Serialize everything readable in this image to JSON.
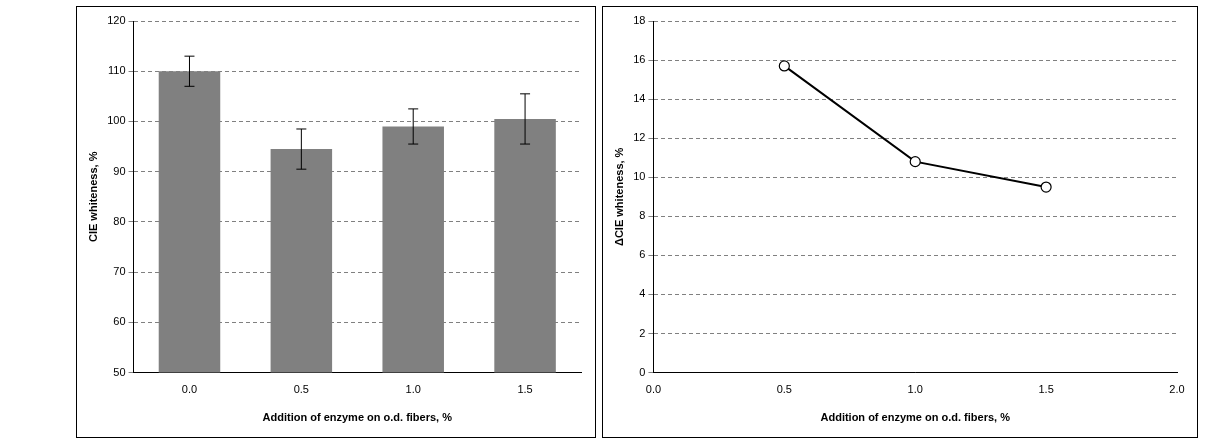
{
  "chart_data": [
    {
      "type": "bar",
      "x_label": "Addition of enzyme on o.d. fibers, %",
      "y_label": "CIE whiteness, %",
      "categories": [
        "0.0",
        "0.5",
        "1.0",
        "1.5"
      ],
      "values": [
        110,
        94.5,
        99,
        100.5
      ],
      "errors": [
        3,
        4,
        3.5,
        5
      ],
      "color": "#808080",
      "ylim": [
        50,
        120
      ],
      "yticks": [
        50,
        60,
        70,
        80,
        90,
        100,
        110,
        120
      ],
      "grid": true
    },
    {
      "type": "line",
      "x_label": "Addition of enzyme on o.d. fibers, %",
      "y_label": "ΔCIE whiteness, %",
      "x": [
        0.5,
        1.0,
        1.5
      ],
      "values": [
        15.7,
        10.8,
        9.5
      ],
      "color": "#000000",
      "marker": "circle",
      "xlim": [
        0,
        2
      ],
      "xticks": [
        {
          "value": 0,
          "label": "0.0"
        },
        {
          "value": 0.5,
          "label": "0.5"
        },
        {
          "value": 1,
          "label": "1.0"
        },
        {
          "value": 1.5,
          "label": "1.5"
        },
        {
          "value": 2,
          "label": "2.0"
        }
      ],
      "ylim": [
        0,
        18
      ],
      "yticks": [
        0,
        2,
        4,
        6,
        8,
        10,
        12,
        14,
        16,
        18
      ],
      "grid": true
    }
  ]
}
